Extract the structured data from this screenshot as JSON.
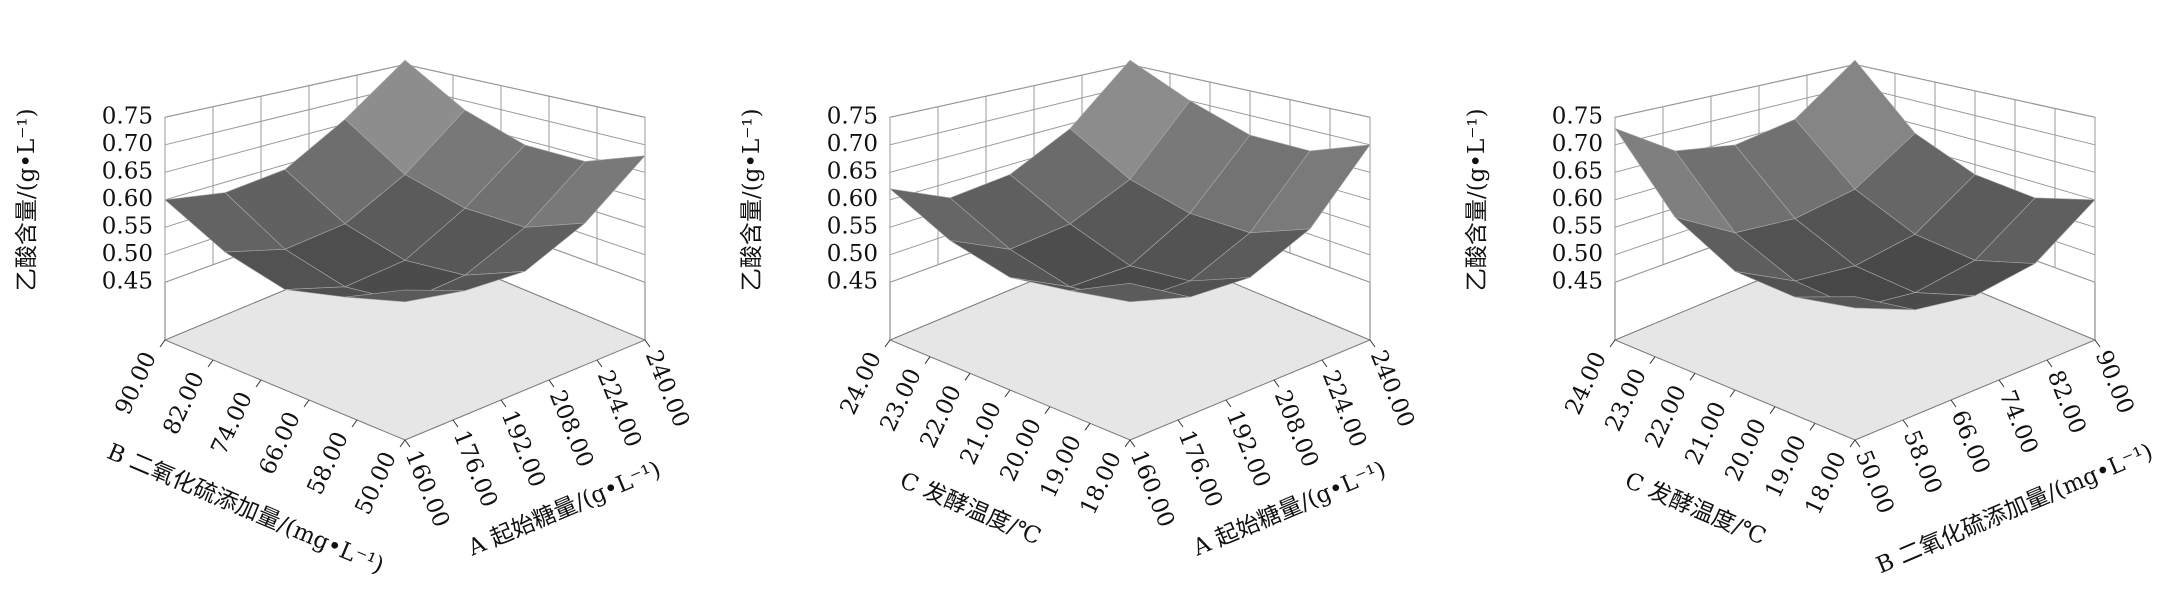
{
  "chart_data": [
    {
      "type": "surface",
      "xlabel": "A 起始糖量/(g•L⁻¹)",
      "ylabel": "B 二氧化硫添加量/(mg•L⁻¹)",
      "zlabel": "乙酸含量/(g•L⁻¹)",
      "xlim": [
        160,
        240
      ],
      "ylim": [
        50,
        90
      ],
      "zlim": [
        0.45,
        0.75
      ],
      "xticks": [
        {
          "value": 160,
          "label": "160.00"
        },
        {
          "value": 176,
          "label": "176.00"
        },
        {
          "value": 192,
          "label": "192.00"
        },
        {
          "value": 208,
          "label": "208.00"
        },
        {
          "value": 224,
          "label": "224.00"
        },
        {
          "value": 240,
          "label": "240.00"
        }
      ],
      "yticks": [
        {
          "value": 50,
          "label": "50.00"
        },
        {
          "value": 58,
          "label": "58.00"
        },
        {
          "value": 66,
          "label": "66.00"
        },
        {
          "value": 74,
          "label": "74.00"
        },
        {
          "value": 82,
          "label": "82.00"
        },
        {
          "value": 90,
          "label": "90.00"
        }
      ],
      "zticks": [
        0.45,
        {
          "value": 0.5,
          "label": "0.50"
        },
        0.55,
        {
          "value": 0.6,
          "label": "0.60"
        },
        0.65,
        {
          "value": 0.7,
          "label": "0.70"
        },
        0.75
      ],
      "x": [
        160,
        180,
        200,
        220,
        240
      ],
      "y": [
        50,
        60,
        70,
        80,
        90
      ],
      "z": [
        [
          0.57,
          0.54,
          0.54,
          0.59,
          0.68
        ],
        [
          0.53,
          0.49,
          0.5,
          0.55,
          0.64
        ],
        [
          0.51,
          0.48,
          0.49,
          0.55,
          0.64
        ],
        [
          0.54,
          0.51,
          0.52,
          0.58,
          0.68
        ],
        [
          0.6,
          0.58,
          0.59,
          0.66,
          0.76
        ]
      ]
    },
    {
      "type": "surface",
      "xlabel": "A 起始糖量/(g•L⁻¹)",
      "ylabel": "C 发酵温度/℃",
      "zlabel": "乙酸含量/(g•L⁻¹)",
      "xlim": [
        160,
        240
      ],
      "ylim": [
        18,
        24
      ],
      "zlim": [
        0.45,
        0.75
      ],
      "xticks": [
        {
          "value": 160,
          "label": "160.00"
        },
        {
          "value": 176,
          "label": "176.00"
        },
        {
          "value": 192,
          "label": "192.00"
        },
        {
          "value": 208,
          "label": "208.00"
        },
        {
          "value": 224,
          "label": "224.00"
        },
        {
          "value": 240,
          "label": "240.00"
        }
      ],
      "yticks": [
        {
          "value": 18,
          "label": "18.00"
        },
        {
          "value": 19,
          "label": "19.00"
        },
        {
          "value": 20,
          "label": "20.00"
        },
        {
          "value": 21,
          "label": "21.00"
        },
        {
          "value": 22,
          "label": "22.00"
        },
        {
          "value": 23,
          "label": "23.00"
        },
        {
          "value": 24,
          "label": "24.00"
        }
      ],
      "zticks": [
        0.45,
        {
          "value": 0.5,
          "label": "0.50"
        },
        0.55,
        {
          "value": 0.6,
          "label": "0.60"
        },
        0.65,
        {
          "value": 0.7,
          "label": "0.70"
        },
        0.75
      ],
      "x": [
        160,
        180,
        200,
        220,
        240
      ],
      "y": [
        18,
        19.5,
        21,
        22.5,
        24
      ],
      "z": [
        [
          0.58,
          0.53,
          0.53,
          0.58,
          0.7
        ],
        [
          0.54,
          0.49,
          0.49,
          0.54,
          0.66
        ],
        [
          0.53,
          0.48,
          0.48,
          0.54,
          0.66
        ],
        [
          0.56,
          0.51,
          0.52,
          0.57,
          0.7
        ],
        [
          0.62,
          0.57,
          0.58,
          0.64,
          0.76
        ]
      ]
    },
    {
      "type": "surface",
      "xlabel": "B 二氧化硫添加量/(mg•L⁻¹)",
      "ylabel": "C 发酵温度/℃",
      "zlabel": "乙酸含量/(g•L⁻¹)",
      "xlim": [
        50,
        90
      ],
      "ylim": [
        18,
        24
      ],
      "zlim": [
        0.45,
        0.75
      ],
      "xticks": [
        {
          "value": 50,
          "label": "50.00"
        },
        {
          "value": 58,
          "label": "58.00"
        },
        {
          "value": 66,
          "label": "66.00"
        },
        {
          "value": 74,
          "label": "74.00"
        },
        {
          "value": 82,
          "label": "82.00"
        },
        {
          "value": 90,
          "label": "90.00"
        }
      ],
      "yticks": [
        {
          "value": 18,
          "label": "18.00"
        },
        {
          "value": 19,
          "label": "19.00"
        },
        {
          "value": 20,
          "label": "20.00"
        },
        {
          "value": 21,
          "label": "21.00"
        },
        {
          "value": 22,
          "label": "22.00"
        },
        {
          "value": 23,
          "label": "23.00"
        },
        {
          "value": 24,
          "label": "24.00"
        }
      ],
      "zticks": [
        0.45,
        {
          "value": 0.5,
          "label": "0.50"
        },
        0.55,
        {
          "value": 0.6,
          "label": "0.60"
        },
        0.65,
        {
          "value": 0.7,
          "label": "0.70"
        },
        0.75
      ],
      "x": [
        50,
        60,
        70,
        80,
        90
      ],
      "y": [
        18,
        19.5,
        21,
        22.5,
        24
      ],
      "z": [
        [
          0.56,
          0.51,
          0.5,
          0.52,
          0.6
        ],
        [
          0.53,
          0.48,
          0.47,
          0.49,
          0.57
        ],
        [
          0.54,
          0.49,
          0.48,
          0.5,
          0.58
        ],
        [
          0.6,
          0.54,
          0.53,
          0.55,
          0.63
        ],
        [
          0.73,
          0.66,
          0.64,
          0.66,
          0.76
        ]
      ]
    }
  ]
}
